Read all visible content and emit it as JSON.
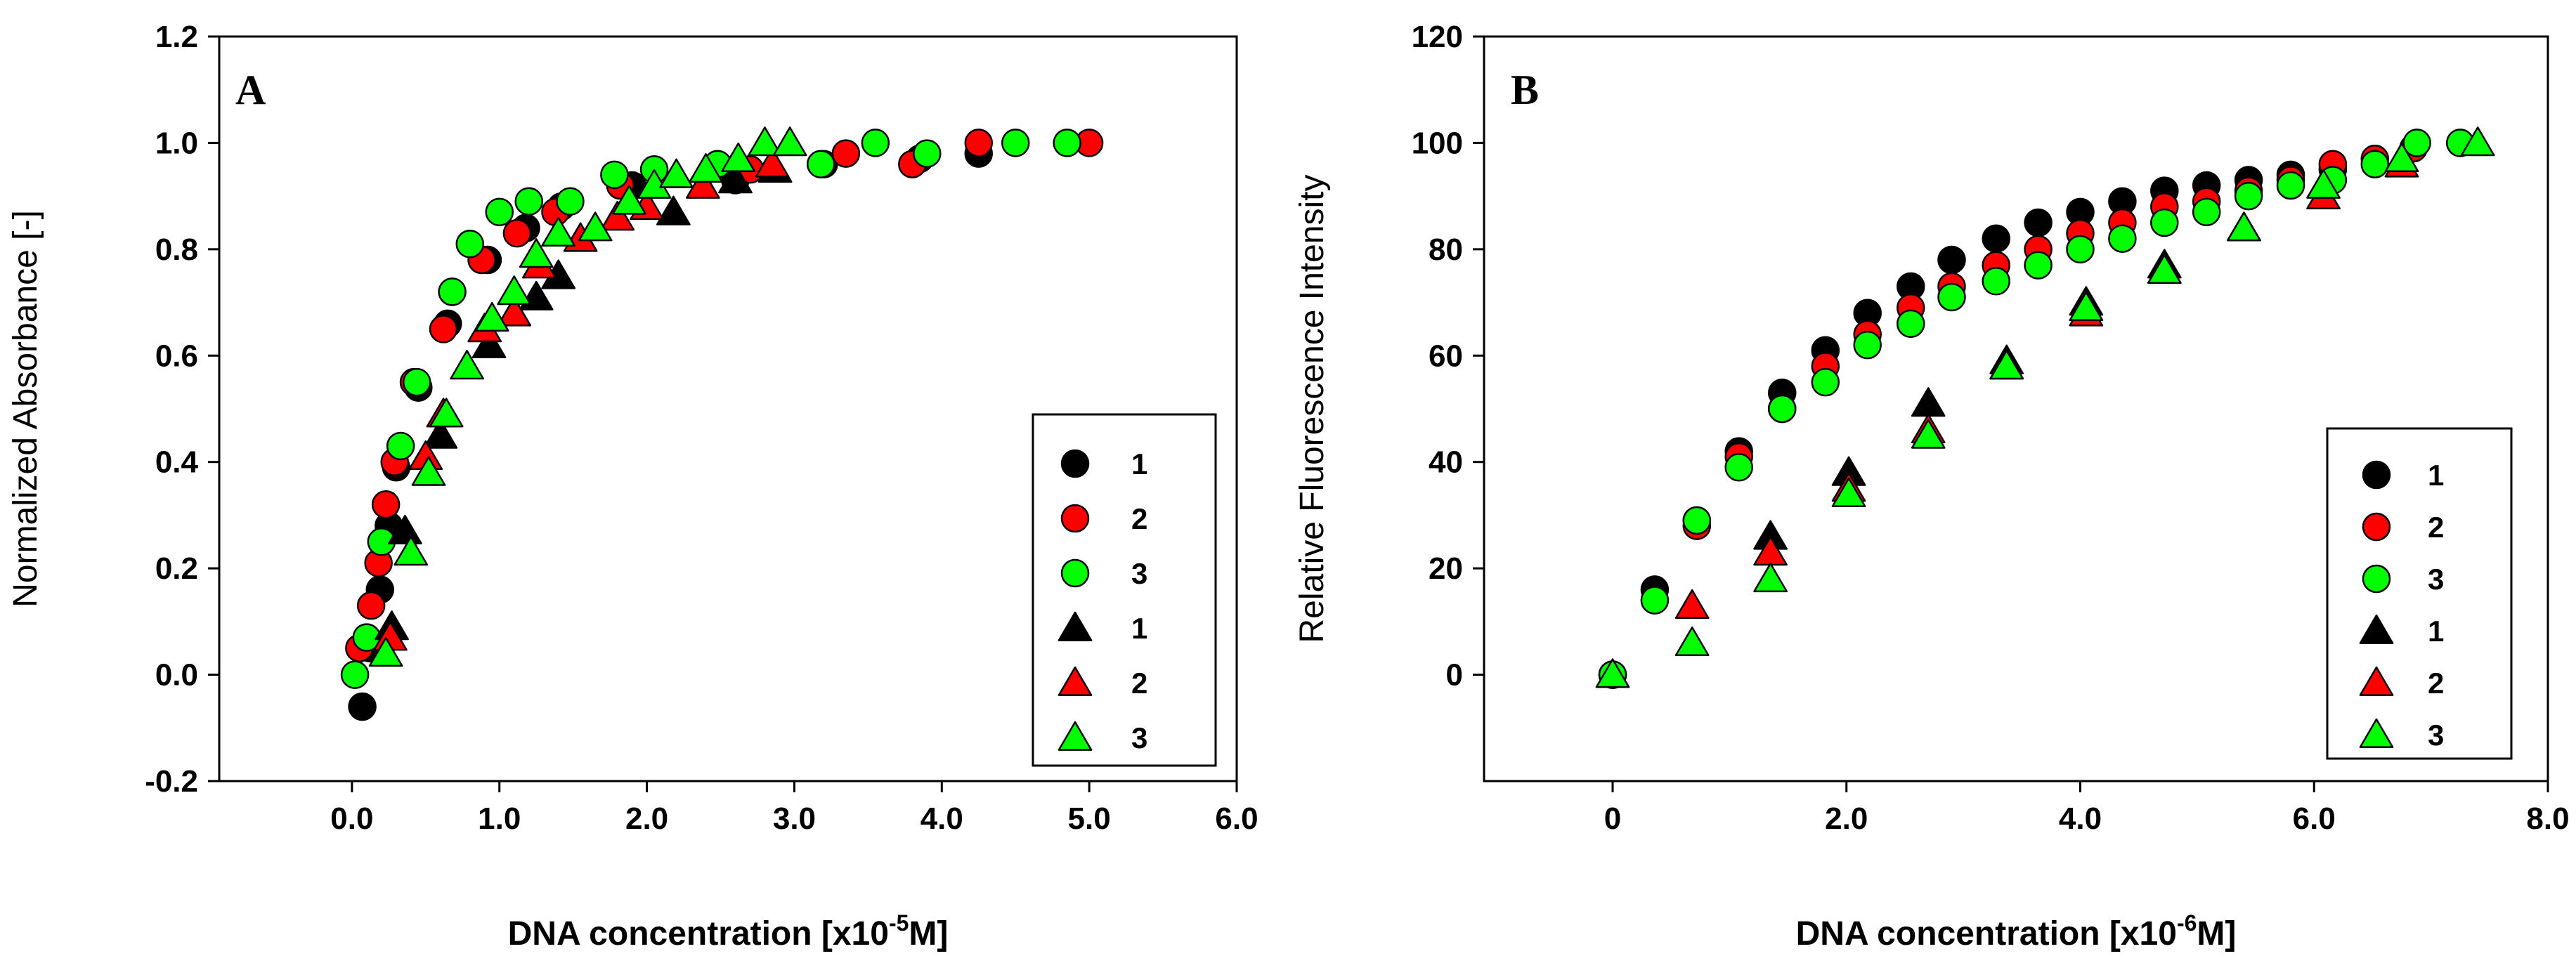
{
  "colors": {
    "black": "#000000",
    "red": "#ff0000",
    "green": "#00ff00",
    "outline": "#000000"
  },
  "chart_data": [
    {
      "type": "scatter",
      "panel_label": "A",
      "title": "",
      "xlabel_main": "DNA concentration [x10",
      "xlabel_sup": "-5",
      "xlabel_end": "M]",
      "ylabel": "Normalized Absorbance [-]",
      "xlim": [
        -0.9,
        6.0
      ],
      "ylim": [
        -0.2,
        1.2
      ],
      "xticks": [
        0.0,
        1.0,
        2.0,
        3.0,
        4.0,
        5.0,
        6.0
      ],
      "xtick_labels": [
        "0.0",
        "1.0",
        "2.0",
        "3.0",
        "4.0",
        "5.0",
        "6.0"
      ],
      "yticks": [
        -0.2,
        0.0,
        0.2,
        0.4,
        0.6,
        0.8,
        1.0,
        1.2
      ],
      "ytick_labels": [
        "-0.2",
        "0.0",
        "0.2",
        "0.4",
        "0.6",
        "0.8",
        "1.0",
        "1.2"
      ],
      "legend_position": "right",
      "series": [
        {
          "name": "1",
          "marker": "circle",
          "color": "#000000",
          "x": [
            0.07,
            0.12,
            0.19,
            0.25,
            0.3,
            0.45,
            0.65,
            0.92,
            1.18,
            1.42,
            1.9,
            2.6,
            3.2,
            3.85,
            4.25
          ],
          "y": [
            -0.06,
            0.05,
            0.16,
            0.28,
            0.39,
            0.54,
            0.66,
            0.78,
            0.84,
            0.88,
            0.92,
            0.93,
            0.96,
            0.97,
            0.98
          ]
        },
        {
          "name": "2",
          "marker": "circle",
          "color": "#ff0000",
          "x": [
            0.05,
            0.13,
            0.18,
            0.23,
            0.29,
            0.42,
            0.62,
            0.88,
            1.12,
            1.38,
            1.82,
            2.7,
            3.35,
            3.8,
            4.25,
            5.0
          ],
          "y": [
            0.05,
            0.13,
            0.21,
            0.32,
            0.4,
            0.55,
            0.65,
            0.78,
            0.83,
            0.87,
            0.92,
            0.95,
            0.98,
            0.96,
            1.0,
            1.0
          ]
        },
        {
          "name": "3",
          "marker": "circle",
          "color": "#00ff00",
          "x": [
            0.02,
            0.1,
            0.2,
            0.33,
            0.44,
            0.68,
            0.8,
            1.0,
            1.2,
            1.48,
            1.78,
            2.05,
            2.48,
            3.18,
            3.55,
            3.9,
            4.5,
            4.85
          ],
          "y": [
            0.0,
            0.07,
            0.25,
            0.43,
            0.55,
            0.72,
            0.81,
            0.87,
            0.89,
            0.89,
            0.94,
            0.95,
            0.96,
            0.96,
            1.0,
            0.98,
            1.0,
            1.0
          ]
        },
        {
          "name": "1",
          "marker": "triangle",
          "color": "#000000",
          "x": [
            0.27,
            0.36,
            0.6,
            0.93,
            1.25,
            1.4,
            1.8,
            2.18,
            2.6,
            2.87
          ],
          "y": [
            0.09,
            0.27,
            0.45,
            0.62,
            0.71,
            0.75,
            0.86,
            0.87,
            0.93,
            0.95
          ]
        },
        {
          "name": "2",
          "marker": "triangle",
          "color": "#ff0000",
          "x": [
            0.26,
            0.5,
            0.62,
            0.9,
            1.1,
            1.27,
            1.55,
            1.8,
            2.0,
            2.38,
            2.85
          ],
          "y": [
            0.07,
            0.41,
            0.49,
            0.65,
            0.68,
            0.77,
            0.82,
            0.86,
            0.88,
            0.92,
            0.96
          ]
        },
        {
          "name": "3",
          "marker": "triangle",
          "color": "#00ff00",
          "x": [
            0.23,
            0.4,
            0.52,
            0.64,
            0.78,
            0.95,
            1.1,
            1.25,
            1.4,
            1.65,
            1.88,
            2.05,
            2.2,
            2.4,
            2.62,
            2.8,
            2.97
          ],
          "y": [
            0.04,
            0.23,
            0.38,
            0.49,
            0.58,
            0.67,
            0.72,
            0.79,
            0.83,
            0.84,
            0.89,
            0.92,
            0.94,
            0.95,
            0.97,
            1.0,
            1.0
          ]
        }
      ]
    },
    {
      "type": "scatter",
      "panel_label": "B",
      "title": "",
      "xlabel_main": "DNA concentration [x10",
      "xlabel_sup": "-6",
      "xlabel_end": "M]",
      "ylabel": "Relative Fluorescence Intensity",
      "xlim": [
        -1.1,
        8.0
      ],
      "ylim": [
        -20,
        120
      ],
      "xticks": [
        0.0,
        2.0,
        4.0,
        6.0,
        8.0
      ],
      "xtick_labels": [
        "0",
        "2.0",
        "4.0",
        "6.0",
        "8.0"
      ],
      "yticks": [
        0,
        20,
        40,
        60,
        80,
        100,
        120
      ],
      "ytick_labels": [
        "0",
        "20",
        "40",
        "60",
        "80",
        "100",
        "120"
      ],
      "legend_position": "right",
      "series": [
        {
          "name": "1",
          "marker": "circle",
          "color": "#000000",
          "x": [
            0.0,
            0.36,
            0.72,
            1.08,
            1.45,
            1.82,
            2.18,
            2.55,
            2.9,
            3.28,
            3.64,
            4.0,
            4.36,
            4.72,
            5.08,
            5.44,
            5.8,
            6.16
          ],
          "y": [
            0,
            16,
            29,
            42,
            53,
            61,
            68,
            73,
            78,
            82,
            85,
            87,
            89,
            91,
            92,
            93,
            94,
            95
          ]
        },
        {
          "name": "2",
          "marker": "circle",
          "color": "#ff0000",
          "x": [
            0.0,
            0.72,
            1.08,
            1.45,
            1.82,
            2.18,
            2.55,
            2.9,
            3.28,
            3.64,
            4.0,
            4.36,
            4.72,
            5.08,
            5.44,
            5.8,
            6.16,
            6.52,
            6.85
          ],
          "y": [
            0,
            28,
            41,
            50,
            58,
            64,
            69,
            73,
            77,
            80,
            83,
            85,
            88,
            89,
            91,
            93,
            96,
            97,
            99
          ]
        },
        {
          "name": "3",
          "marker": "circle",
          "color": "#00ff00",
          "x": [
            0.0,
            0.36,
            0.72,
            1.08,
            1.45,
            1.82,
            2.18,
            2.55,
            2.9,
            3.28,
            3.64,
            4.0,
            4.36,
            4.72,
            5.08,
            5.44,
            5.8,
            6.16,
            6.52,
            6.88,
            7.25
          ],
          "y": [
            0,
            14,
            29,
            39,
            50,
            55,
            62,
            66,
            71,
            74,
            77,
            80,
            82,
            85,
            87,
            90,
            92,
            93,
            96,
            100,
            100
          ]
        },
        {
          "name": "1",
          "marker": "triangle",
          "color": "#000000",
          "x": [
            1.35,
            2.02,
            2.7,
            3.37,
            4.05,
            4.72,
            5.4
          ],
          "y": [
            26,
            38,
            51,
            59,
            70,
            77,
            84
          ]
        },
        {
          "name": "2",
          "marker": "triangle",
          "color": "#ff0000",
          "x": [
            0.68,
            1.35,
            2.02,
            2.7,
            3.37,
            4.05,
            4.72,
            5.4,
            6.08,
            6.75
          ],
          "y": [
            13,
            23,
            35,
            46,
            58,
            68,
            76,
            84,
            90,
            96
          ]
        },
        {
          "name": "3",
          "marker": "triangle",
          "color": "#00ff00",
          "x": [
            0.0,
            0.68,
            1.35,
            2.02,
            2.7,
            3.37,
            4.05,
            4.72,
            5.4,
            6.08,
            6.75,
            7.4
          ],
          "y": [
            0,
            6,
            18,
            34,
            45,
            58,
            69,
            76,
            84,
            92,
            97,
            100
          ]
        }
      ]
    }
  ]
}
